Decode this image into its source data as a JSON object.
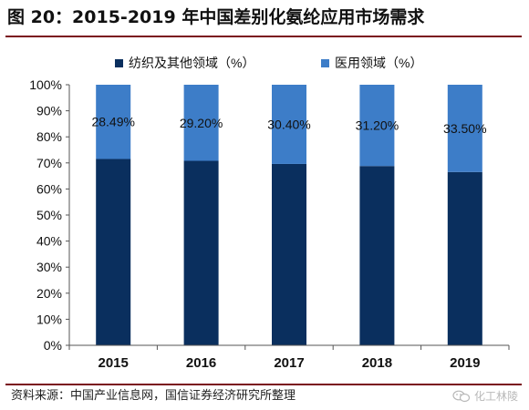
{
  "header": {
    "title": "图 20：2015-2019 年中国差别化氨纶应用市场需求"
  },
  "footer": {
    "source": "资料来源：中国产业信息网，国信证券经济研究所整理",
    "watermark": "化工林陵",
    "watermark_icon": "wechat-icon"
  },
  "colors": {
    "textile": "#0a2f5e",
    "medical": "#3d7dc8",
    "rule": "#7a0f1e"
  },
  "chart_data": {
    "type": "bar",
    "stacked": true,
    "percent_stacked": true,
    "categories": [
      "2015",
      "2016",
      "2017",
      "2018",
      "2019"
    ],
    "series": [
      {
        "name": "纺织及其他领域（%）",
        "values": [
          71.51,
          70.8,
          69.6,
          68.8,
          66.5
        ]
      },
      {
        "name": "医用领域（%）",
        "values": [
          28.49,
          29.2,
          30.4,
          31.2,
          33.5
        ]
      }
    ],
    "data_labels": [
      "28.49%",
      "29.20%",
      "30.40%",
      "31.20%",
      "33.50%"
    ],
    "ylim": [
      0,
      100
    ],
    "yticks": [
      "0%",
      "10%",
      "20%",
      "30%",
      "40%",
      "50%",
      "60%",
      "70%",
      "80%",
      "90%",
      "100%"
    ],
    "legend_position": "top",
    "grid": false
  }
}
